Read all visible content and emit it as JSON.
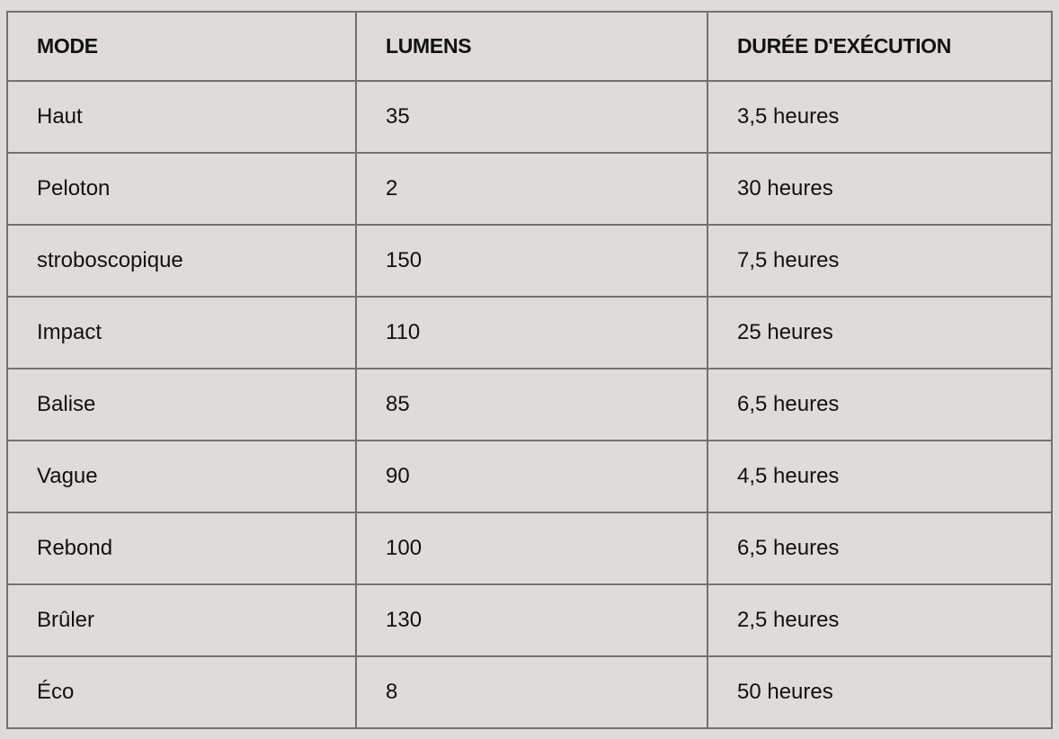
{
  "table": {
    "headers": [
      "MODE",
      "LUMENS",
      "DURÉE D'EXÉCUTION"
    ],
    "rows": [
      [
        "Haut",
        "35",
        "3,5 heures"
      ],
      [
        "Peloton",
        "2",
        "30 heures"
      ],
      [
        "stroboscopique",
        "150",
        "7,5 heures"
      ],
      [
        "Impact",
        "110",
        "25 heures"
      ],
      [
        "Balise",
        "85",
        "6,5 heures"
      ],
      [
        "Vague",
        "90",
        "4,5 heures"
      ],
      [
        "Rebond",
        "100",
        "6,5 heures"
      ],
      [
        "Brûler",
        "130",
        "2,5 heures"
      ],
      [
        "Éco",
        "8",
        "50 heures"
      ]
    ]
  },
  "colors": {
    "background": "#dfdbd8",
    "border": "#737170",
    "text": "#111111"
  }
}
